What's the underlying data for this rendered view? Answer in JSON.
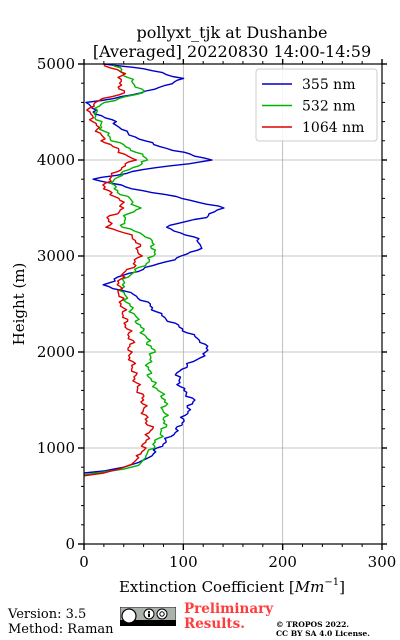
{
  "chart_data": {
    "type": "line",
    "title_line1": "pollyxt_tjk at Dushanbe",
    "title_line2": "[Averaged] 20220830 14:00-14:59",
    "xlabel_prefix": "Extinction Coefficient [",
    "xlabel_unit_base": "Mm",
    "xlabel_unit_exp": "−1",
    "xlabel_suffix": "]",
    "ylabel": "Height (m)",
    "xlim": [
      0,
      300
    ],
    "ylim": [
      0,
      5000
    ],
    "xticks": [
      0,
      100,
      200,
      300
    ],
    "yticks": [
      0,
      1000,
      2000,
      3000,
      4000,
      5000
    ],
    "grid": true,
    "legend_position": "top-right",
    "series": [
      {
        "name": "355 nm",
        "color": "#0000cc",
        "points": [
          [
            0,
            740
          ],
          [
            20,
            760
          ],
          [
            40,
            800
          ],
          [
            55,
            850
          ],
          [
            65,
            900
          ],
          [
            75,
            1000
          ],
          [
            85,
            1100
          ],
          [
            95,
            1200
          ],
          [
            100,
            1300
          ],
          [
            105,
            1400
          ],
          [
            110,
            1500
          ],
          [
            100,
            1600
          ],
          [
            95,
            1700
          ],
          [
            95,
            1800
          ],
          [
            110,
            1900
          ],
          [
            125,
            2000
          ],
          [
            120,
            2100
          ],
          [
            105,
            2200
          ],
          [
            90,
            2300
          ],
          [
            75,
            2400
          ],
          [
            65,
            2500
          ],
          [
            50,
            2600
          ],
          [
            20,
            2700
          ],
          [
            40,
            2800
          ],
          [
            70,
            2900
          ],
          [
            100,
            3000
          ],
          [
            120,
            3100
          ],
          [
            110,
            3200
          ],
          [
            80,
            3300
          ],
          [
            120,
            3400
          ],
          [
            140,
            3500
          ],
          [
            100,
            3600
          ],
          [
            50,
            3700
          ],
          [
            10,
            3800
          ],
          [
            60,
            3900
          ],
          [
            130,
            4000
          ],
          [
            90,
            4100
          ],
          [
            60,
            4200
          ],
          [
            40,
            4300
          ],
          [
            30,
            4400
          ],
          [
            10,
            4500
          ],
          [
            5,
            4600
          ],
          [
            60,
            4700
          ],
          [
            100,
            4850
          ],
          [
            60,
            4950
          ],
          [
            20,
            5000
          ]
        ]
      },
      {
        "name": "532 nm",
        "color": "#00b400",
        "points": [
          [
            0,
            720
          ],
          [
            20,
            750
          ],
          [
            40,
            780
          ],
          [
            55,
            820
          ],
          [
            62,
            900
          ],
          [
            68,
            1000
          ],
          [
            75,
            1100
          ],
          [
            80,
            1200
          ],
          [
            82,
            1300
          ],
          [
            80,
            1400
          ],
          [
            82,
            1500
          ],
          [
            75,
            1600
          ],
          [
            68,
            1700
          ],
          [
            65,
            1800
          ],
          [
            65,
            1900
          ],
          [
            70,
            2000
          ],
          [
            65,
            2100
          ],
          [
            60,
            2200
          ],
          [
            55,
            2300
          ],
          [
            50,
            2400
          ],
          [
            45,
            2500
          ],
          [
            40,
            2600
          ],
          [
            38,
            2700
          ],
          [
            45,
            2800
          ],
          [
            60,
            2900
          ],
          [
            70,
            3000
          ],
          [
            70,
            3100
          ],
          [
            65,
            3200
          ],
          [
            40,
            3300
          ],
          [
            40,
            3400
          ],
          [
            55,
            3500
          ],
          [
            45,
            3600
          ],
          [
            30,
            3700
          ],
          [
            30,
            3800
          ],
          [
            45,
            3900
          ],
          [
            65,
            4000
          ],
          [
            50,
            4100
          ],
          [
            30,
            4200
          ],
          [
            20,
            4300
          ],
          [
            15,
            4400
          ],
          [
            10,
            4500
          ],
          [
            20,
            4600
          ],
          [
            60,
            4700
          ],
          [
            50,
            4800
          ],
          [
            40,
            4900
          ],
          [
            30,
            5000
          ]
        ]
      },
      {
        "name": "1064 nm",
        "color": "#dd0000",
        "points": [
          [
            0,
            710
          ],
          [
            20,
            740
          ],
          [
            35,
            780
          ],
          [
            48,
            830
          ],
          [
            55,
            900
          ],
          [
            60,
            1000
          ],
          [
            63,
            1100
          ],
          [
            68,
            1200
          ],
          [
            62,
            1300
          ],
          [
            60,
            1400
          ],
          [
            60,
            1500
          ],
          [
            55,
            1600
          ],
          [
            52,
            1700
          ],
          [
            50,
            1800
          ],
          [
            48,
            1900
          ],
          [
            45,
            2000
          ],
          [
            48,
            2100
          ],
          [
            45,
            2200
          ],
          [
            42,
            2300
          ],
          [
            40,
            2400
          ],
          [
            38,
            2500
          ],
          [
            36,
            2600
          ],
          [
            35,
            2700
          ],
          [
            38,
            2800
          ],
          [
            50,
            2900
          ],
          [
            55,
            3000
          ],
          [
            55,
            3100
          ],
          [
            50,
            3200
          ],
          [
            25,
            3300
          ],
          [
            25,
            3400
          ],
          [
            40,
            3500
          ],
          [
            35,
            3600
          ],
          [
            20,
            3700
          ],
          [
            25,
            3800
          ],
          [
            35,
            3900
          ],
          [
            50,
            4000
          ],
          [
            35,
            4100
          ],
          [
            20,
            4200
          ],
          [
            15,
            4300
          ],
          [
            10,
            4400
          ],
          [
            5,
            4500
          ],
          [
            10,
            4600
          ],
          [
            40,
            4700
          ],
          [
            35,
            4800
          ],
          [
            40,
            4900
          ],
          [
            20,
            5000
          ]
        ]
      }
    ]
  },
  "footer": {
    "version": "Version: 3.5",
    "method": "Method: Raman",
    "preliminary_line1": "Preliminary",
    "preliminary_line2": "Results.",
    "copyright_line1": "© TROPOS 2022.",
    "copyright_line2": "CC BY SA 4.0 License."
  }
}
